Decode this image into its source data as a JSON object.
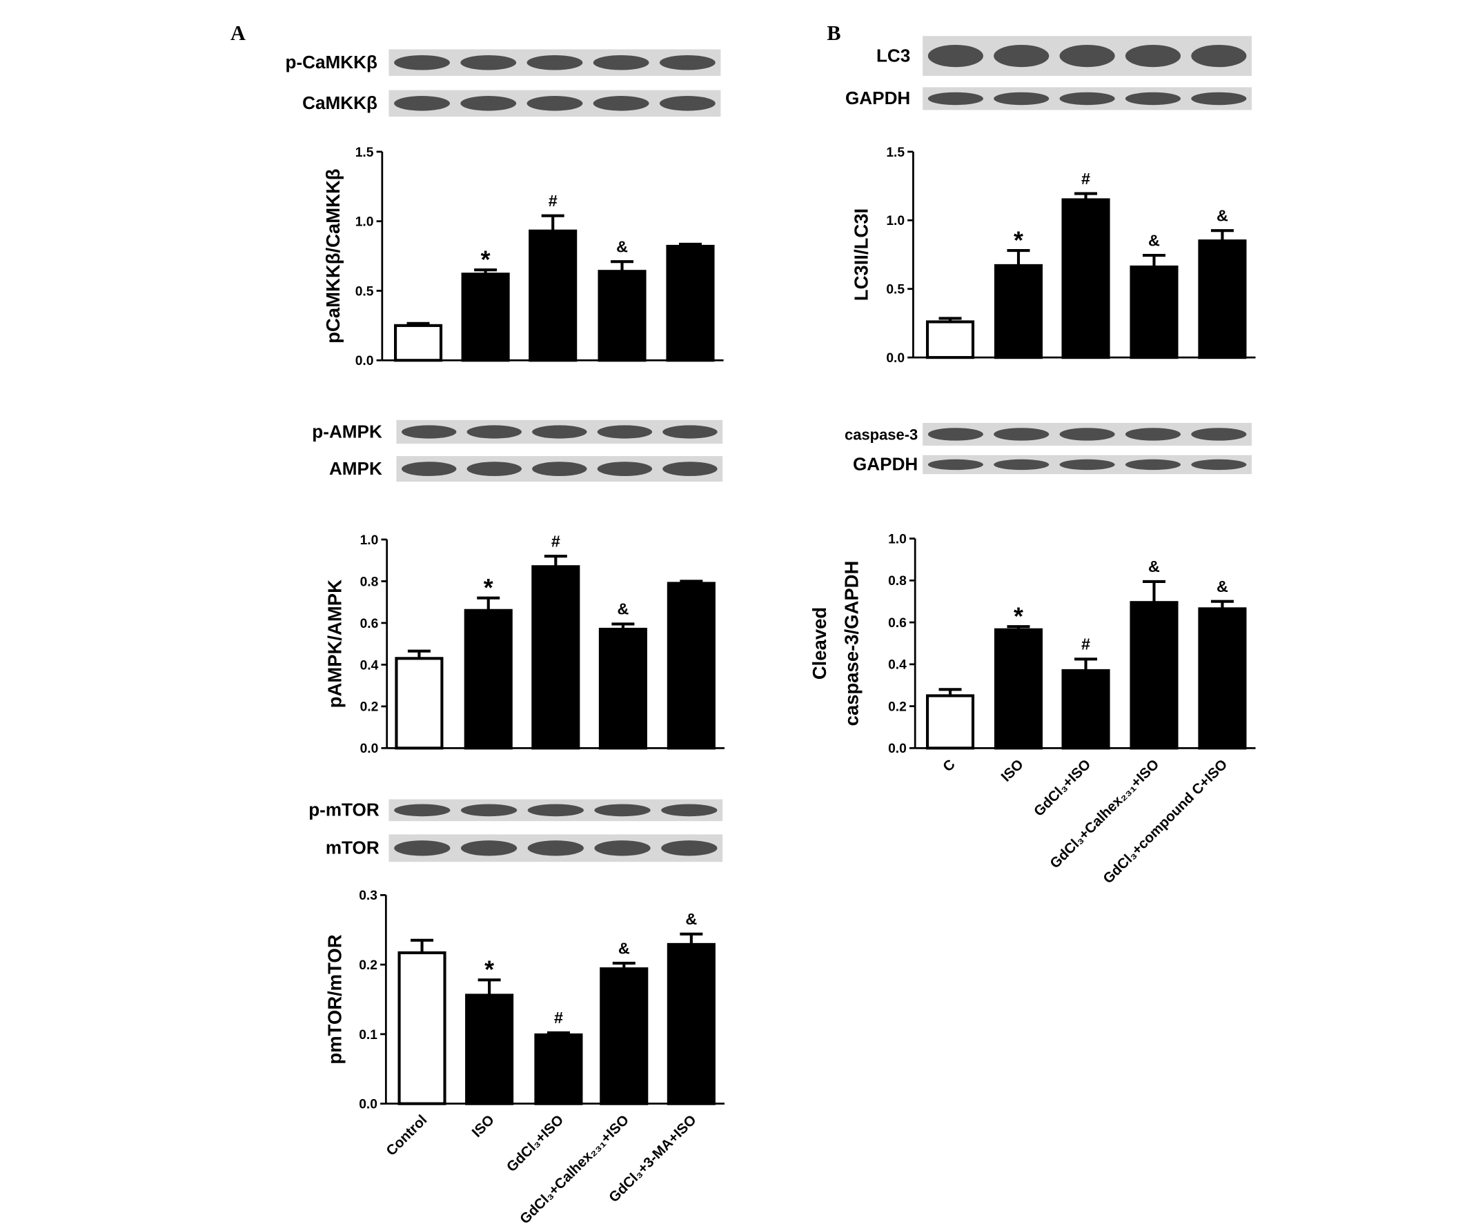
{
  "panels": [
    "A",
    "B"
  ],
  "chart_data": [
    {
      "type": "bar",
      "ylabel": [
        "pCaMKKβ/CaMKKβ"
      ],
      "blot_labels": [
        "p-CaMKKβ",
        "CaMKKβ"
      ],
      "categories": [
        null,
        null,
        null,
        null,
        null
      ],
      "values": [
        0.25,
        0.62,
        0.93,
        0.64,
        0.82
      ],
      "errors": [
        0.015,
        0.03,
        0.11,
        0.07,
        0.015
      ],
      "annotations": [
        null,
        "*",
        "#",
        "&",
        null
      ],
      "bar_colors": [
        "#ffffff",
        "#000000",
        "#000000",
        "#000000",
        "#000000"
      ],
      "ylim": [
        0,
        1.5
      ],
      "yticks": [
        {
          "value": 0,
          "label": "0.0"
        },
        {
          "value": 0.5,
          "label": "0.5"
        },
        {
          "value": 1,
          "label": "1.0"
        },
        {
          "value": 1.5,
          "label": "1.5"
        }
      ]
    },
    {
      "type": "bar",
      "ylabel": [
        "pAMPK/AMPK"
      ],
      "blot_labels": [
        "p-AMPK",
        "AMPK"
      ],
      "categories": [
        null,
        null,
        null,
        null,
        null
      ],
      "values": [
        0.43,
        0.66,
        0.87,
        0.57,
        0.79
      ],
      "errors": [
        0.035,
        0.06,
        0.05,
        0.025,
        0.01
      ],
      "annotations": [
        null,
        "*",
        "#",
        "&",
        null
      ],
      "bar_colors": [
        "#ffffff",
        "#000000",
        "#000000",
        "#000000",
        "#000000"
      ],
      "ylim": [
        0,
        1
      ],
      "yticks": [
        {
          "value": 0,
          "label": "0.0"
        },
        0.2,
        0.4,
        0.6,
        0.8,
        {
          "value": 1,
          "label": "1.0"
        }
      ]
    },
    {
      "type": "bar",
      "ylabel": [
        "pmTOR/mTOR"
      ],
      "blot_labels": [
        "p-mTOR",
        "mTOR"
      ],
      "categories": [
        "Control",
        "ISO",
        "GdCl₃+ISO",
        "GdCl₃+Calhex₂₃₁+ISO",
        "GdCl₃+3-MA+ISO"
      ],
      "values": [
        0.217,
        0.156,
        0.099,
        0.194,
        0.229
      ],
      "errors": [
        0.018,
        0.022,
        0.003,
        0.008,
        0.015
      ],
      "annotations": [
        null,
        "*",
        "#",
        "&",
        "&"
      ],
      "bar_colors": [
        "#ffffff",
        "#000000",
        "#000000",
        "#000000",
        "#000000"
      ],
      "ylim": [
        0,
        0.3
      ],
      "yticks": [
        {
          "value": 0,
          "label": "0.0"
        },
        0.1,
        0.2,
        0.3
      ]
    },
    {
      "type": "bar",
      "ylabel": [
        "LC3II/LC3I"
      ],
      "blot_labels": [
        "LC3",
        "GAPDH"
      ],
      "categories": [
        null,
        null,
        null,
        null,
        null
      ],
      "values": [
        0.26,
        0.67,
        1.15,
        0.66,
        0.85
      ],
      "errors": [
        0.025,
        0.11,
        0.045,
        0.085,
        0.075
      ],
      "annotations": [
        null,
        "*",
        "#",
        "&",
        "&"
      ],
      "bar_colors": [
        "#ffffff",
        "#000000",
        "#000000",
        "#000000",
        "#000000"
      ],
      "ylim": [
        0,
        1.5
      ],
      "yticks": [
        {
          "value": 0,
          "label": "0.0"
        },
        0.5,
        {
          "value": 1,
          "label": "1.0"
        },
        1.5
      ]
    },
    {
      "type": "bar",
      "ylabel": [
        "Cleaved",
        "caspase-3/GAPDH"
      ],
      "blot_labels": [
        "caspase-3",
        "GAPDH"
      ],
      "categories": [
        "C",
        "ISO",
        "GdCl₃+ISO",
        "GdCl₃+Calhex₂₃₁+ISO",
        "GdCl₃+compound C+ISO"
      ],
      "values": [
        0.25,
        0.565,
        0.37,
        0.695,
        0.665
      ],
      "errors": [
        0.03,
        0.015,
        0.055,
        0.1,
        0.035
      ],
      "annotations": [
        null,
        "*",
        "#",
        "&",
        "&"
      ],
      "bar_colors": [
        "#ffffff",
        "#000000",
        "#000000",
        "#000000",
        "#000000"
      ],
      "ylim": [
        0,
        1
      ],
      "yticks": [
        {
          "value": 0,
          "label": "0.0"
        },
        0.2,
        0.4,
        0.6,
        0.8,
        {
          "value": 1,
          "label": "1.0"
        }
      ]
    }
  ]
}
